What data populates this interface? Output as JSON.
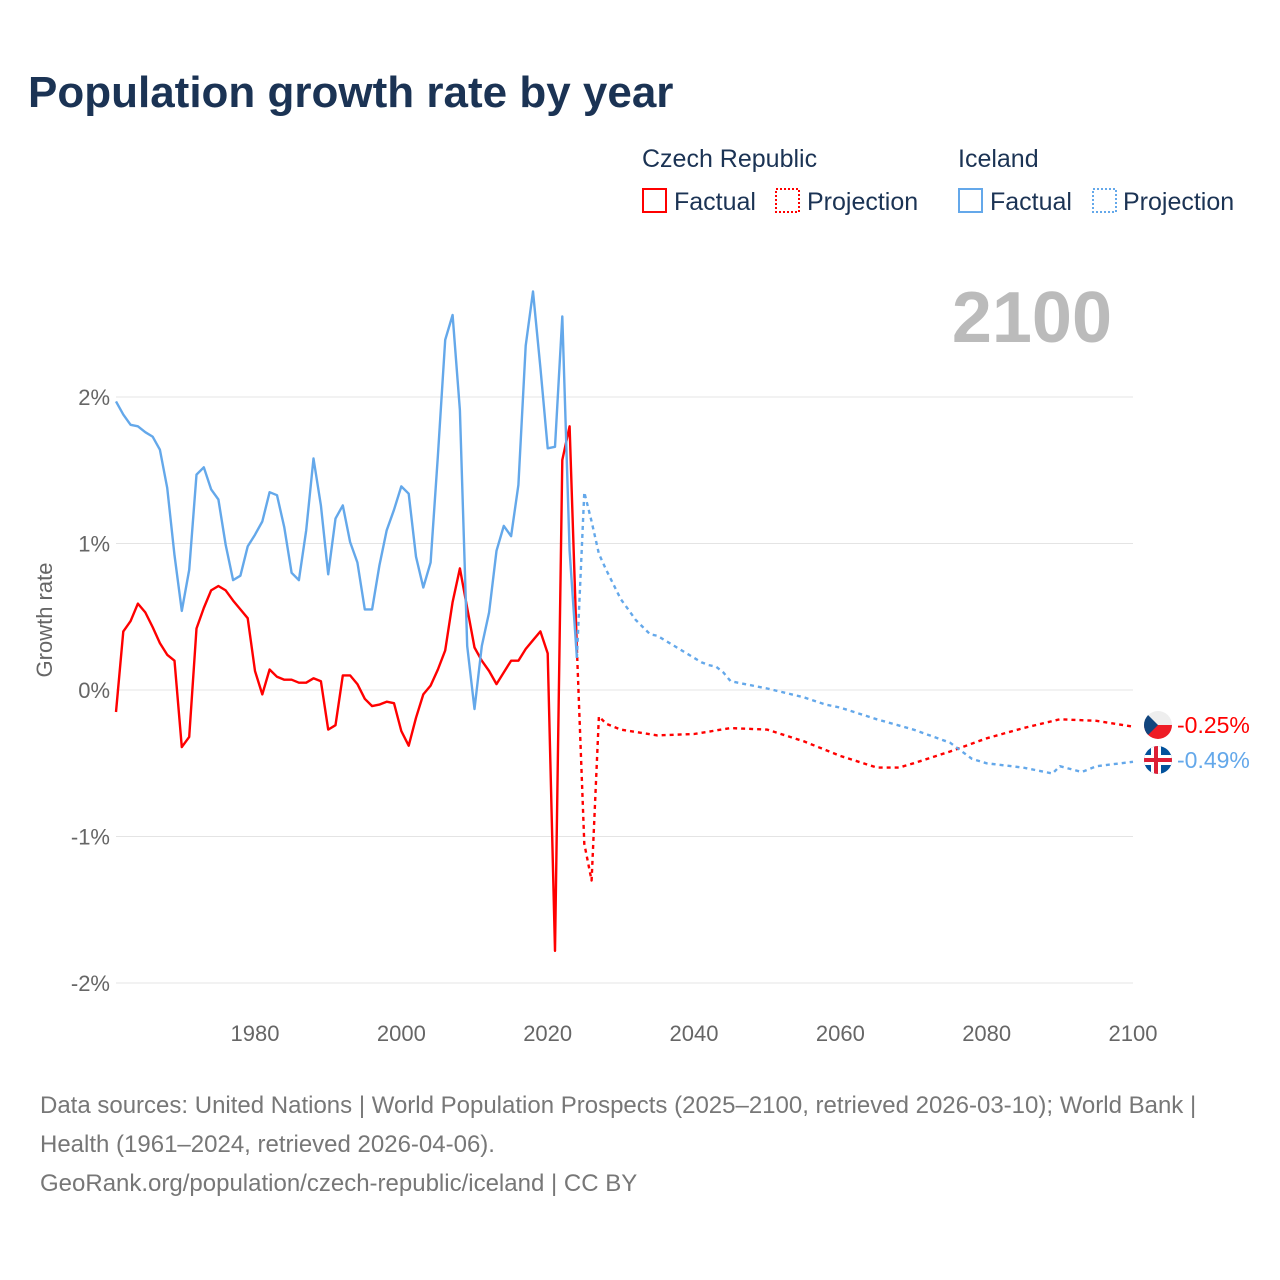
{
  "title": "Population growth rate by year",
  "legend": {
    "groups": [
      {
        "name": "Czech Republic",
        "factual": "Factual",
        "projection": "Projection"
      },
      {
        "name": "Iceland",
        "factual": "Factual",
        "projection": "Projection"
      }
    ]
  },
  "year_label": "2100",
  "footer": {
    "sources": "Data sources: United Nations | World Population Prospects (2025–2100, retrieved 2026-03-10); World Bank | Health (1961–2024, retrieved 2026-04-06).",
    "link": "GeoRank.org/population/czech-republic/iceland | CC BY"
  },
  "chart_data": {
    "type": "line",
    "title": "Population growth rate by year",
    "xlabel": "",
    "ylabel": "Growth rate",
    "xlim": [
      1961,
      2100
    ],
    "ylim": [
      -2,
      2.8
    ],
    "x_ticks": [
      "1980",
      "2000",
      "2020",
      "2040",
      "2060",
      "2080",
      "2100"
    ],
    "y_ticks": [
      "2%",
      "1%",
      "0%",
      "-1%",
      "-2%"
    ],
    "grid": true,
    "legend_position": "top-right",
    "series": [
      {
        "name": "Czech Republic",
        "kind": "Factual",
        "color": "#ff0000",
        "end_label": "-0.25%",
        "x": [
          1961,
          1962,
          1963,
          1964,
          1965,
          1966,
          1967,
          1968,
          1969,
          1970,
          1971,
          1972,
          1973,
          1974,
          1975,
          1976,
          1977,
          1978,
          1979,
          1980,
          1981,
          1982,
          1983,
          1984,
          1985,
          1986,
          1987,
          1988,
          1989,
          1990,
          1991,
          1992,
          1993,
          1994,
          1995,
          1996,
          1997,
          1998,
          1999,
          2000,
          2001,
          2002,
          2003,
          2004,
          2005,
          2006,
          2007,
          2008,
          2009,
          2010,
          2011,
          2012,
          2013,
          2014,
          2015,
          2016,
          2017,
          2018,
          2019,
          2020,
          2021,
          2022,
          2023,
          2024
        ],
        "y": [
          -0.15,
          0.4,
          0.47,
          0.59,
          0.53,
          0.43,
          0.32,
          0.24,
          0.2,
          -0.39,
          -0.32,
          0.42,
          0.56,
          0.68,
          0.71,
          0.68,
          0.61,
          0.55,
          0.49,
          0.13,
          -0.03,
          0.14,
          0.09,
          0.07,
          0.07,
          0.05,
          0.05,
          0.08,
          0.06,
          -0.27,
          -0.24,
          0.1,
          0.1,
          0.04,
          -0.06,
          -0.11,
          -0.1,
          -0.08,
          -0.09,
          -0.28,
          -0.38,
          -0.19,
          -0.03,
          0.03,
          0.14,
          0.27,
          0.6,
          0.83,
          0.56,
          0.29,
          0.2,
          0.13,
          0.04,
          0.12,
          0.2,
          0.2,
          0.28,
          0.34,
          0.4,
          0.25,
          -1.78,
          1.57,
          1.8,
          0.28
        ]
      },
      {
        "name": "Czech Republic",
        "kind": "Projection",
        "color": "#ff0000",
        "x": [
          2024,
          2025,
          2026,
          2027,
          2028,
          2030,
          2035,
          2040,
          2045,
          2050,
          2055,
          2060,
          2065,
          2068,
          2070,
          2075,
          2080,
          2085,
          2090,
          2095,
          2100
        ],
        "y": [
          0.28,
          -1.05,
          -1.3,
          -0.18,
          -0.23,
          -0.27,
          -0.31,
          -0.3,
          -0.26,
          -0.27,
          -0.35,
          -0.45,
          -0.53,
          -0.53,
          -0.5,
          -0.42,
          -0.33,
          -0.26,
          -0.2,
          -0.21,
          -0.25
        ]
      },
      {
        "name": "Iceland",
        "kind": "Factual",
        "color": "#64a8ea",
        "end_label": "-0.49%",
        "x": [
          1961,
          1962,
          1963,
          1964,
          1965,
          1966,
          1967,
          1968,
          1969,
          1970,
          1971,
          1972,
          1973,
          1974,
          1975,
          1976,
          1977,
          1978,
          1979,
          1980,
          1981,
          1982,
          1983,
          1984,
          1985,
          1986,
          1987,
          1988,
          1989,
          1990,
          1991,
          1992,
          1993,
          1994,
          1995,
          1996,
          1997,
          1998,
          1999,
          2000,
          2001,
          2002,
          2003,
          2004,
          2005,
          2006,
          2007,
          2008,
          2009,
          2010,
          2011,
          2012,
          2013,
          2014,
          2015,
          2016,
          2017,
          2018,
          2019,
          2020,
          2021,
          2022,
          2023,
          2024
        ],
        "y": [
          1.97,
          1.88,
          1.81,
          1.8,
          1.76,
          1.73,
          1.64,
          1.38,
          0.92,
          0.54,
          0.82,
          1.47,
          1.52,
          1.37,
          1.3,
          0.99,
          0.75,
          0.78,
          0.98,
          1.06,
          1.15,
          1.35,
          1.33,
          1.11,
          0.8,
          0.75,
          1.09,
          1.58,
          1.26,
          0.79,
          1.17,
          1.26,
          1.01,
          0.87,
          0.55,
          0.55,
          0.85,
          1.09,
          1.23,
          1.39,
          1.34,
          0.91,
          0.7,
          0.87,
          1.6,
          2.39,
          2.56,
          1.91,
          0.3,
          -0.13,
          0.3,
          0.53,
          0.95,
          1.12,
          1.05,
          1.4,
          2.35,
          2.72,
          2.2,
          1.65,
          1.66,
          2.55,
          0.95,
          0.22
        ]
      },
      {
        "name": "Iceland",
        "kind": "Projection",
        "color": "#64a8ea",
        "x": [
          2024,
          2025,
          2026,
          2027,
          2028,
          2029,
          2030,
          2031,
          2032,
          2033,
          2034,
          2035,
          2036,
          2037,
          2038,
          2039,
          2040,
          2041,
          2042,
          2043,
          2044,
          2045,
          2046,
          2050,
          2055,
          2058,
          2060,
          2065,
          2070,
          2075,
          2078,
          2080,
          2085,
          2089,
          2090,
          2093,
          2095,
          2100
        ],
        "y": [
          0.22,
          1.35,
          1.15,
          0.93,
          0.82,
          0.72,
          0.62,
          0.55,
          0.48,
          0.43,
          0.38,
          0.37,
          0.34,
          0.31,
          0.28,
          0.25,
          0.22,
          0.19,
          0.17,
          0.16,
          0.12,
          0.06,
          0.05,
          0.01,
          -0.05,
          -0.1,
          -0.12,
          -0.2,
          -0.27,
          -0.36,
          -0.47,
          -0.5,
          -0.53,
          -0.57,
          -0.52,
          -0.56,
          -0.52,
          -0.49
        ]
      }
    ]
  }
}
